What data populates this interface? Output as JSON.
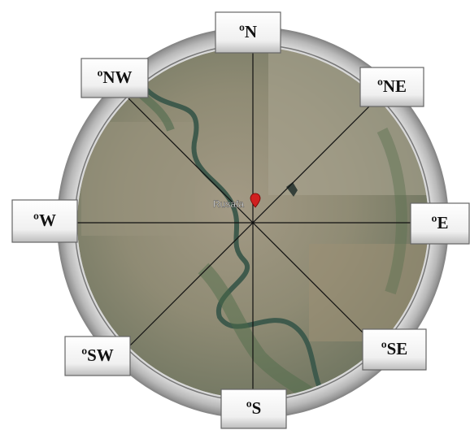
{
  "directions": [
    {
      "label": "ºN"
    },
    {
      "label": "ºNE"
    },
    {
      "label": "ºE"
    },
    {
      "label": "ºSE"
    },
    {
      "label": "ºS"
    },
    {
      "label": "ºSW"
    },
    {
      "label": "ºW"
    },
    {
      "label": "ºNW"
    }
  ],
  "map_label": "Rusafa"
}
